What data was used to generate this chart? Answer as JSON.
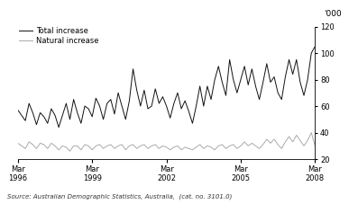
{
  "ylabel_right": "'000",
  "ylim": [
    20,
    120
  ],
  "yticks": [
    20,
    40,
    60,
    80,
    100,
    120
  ],
  "source_text": "Source: Australian Demographic Statistics, Australia,  (cat. no. 3101.0)",
  "legend_labels": [
    "Total increase",
    "Natural increase"
  ],
  "line_colors": [
    "#111111",
    "#aaaaaa"
  ],
  "xtick_labels": [
    "Mar\n1996",
    "Mar\n1999",
    "Mar\n2002",
    "Mar\n2005",
    "Mar\n2008"
  ],
  "total_increase": [
    57,
    53,
    49,
    62,
    55,
    46,
    55,
    52,
    47,
    58,
    53,
    44,
    53,
    62,
    50,
    65,
    55,
    47,
    60,
    58,
    52,
    66,
    60,
    50,
    62,
    65,
    54,
    70,
    60,
    50,
    64,
    88,
    72,
    60,
    72,
    58,
    60,
    73,
    62,
    67,
    60,
    51,
    62,
    70,
    58,
    64,
    56,
    47,
    60,
    75,
    60,
    75,
    65,
    80,
    90,
    78,
    68,
    95,
    80,
    70,
    80,
    90,
    76,
    88,
    75,
    65,
    78,
    92,
    78,
    82,
    70,
    65,
    82,
    95,
    84,
    95,
    78,
    68,
    80,
    100,
    105
  ],
  "natural_increase": [
    32,
    30,
    28,
    33,
    31,
    28,
    32,
    31,
    28,
    32,
    30,
    27,
    30,
    29,
    26,
    30,
    30,
    27,
    31,
    30,
    27,
    30,
    31,
    28,
    30,
    31,
    28,
    30,
    31,
    27,
    30,
    31,
    28,
    30,
    31,
    28,
    30,
    31,
    28,
    30,
    29,
    27,
    29,
    30,
    27,
    29,
    28,
    27,
    29,
    31,
    28,
    30,
    29,
    27,
    30,
    31,
    28,
    30,
    31,
    28,
    30,
    33,
    30,
    32,
    30,
    28,
    31,
    35,
    32,
    35,
    31,
    28,
    33,
    37,
    33,
    38,
    34,
    30,
    34,
    40,
    30
  ],
  "figsize": [
    3.97,
    2.27
  ],
  "dpi": 100
}
